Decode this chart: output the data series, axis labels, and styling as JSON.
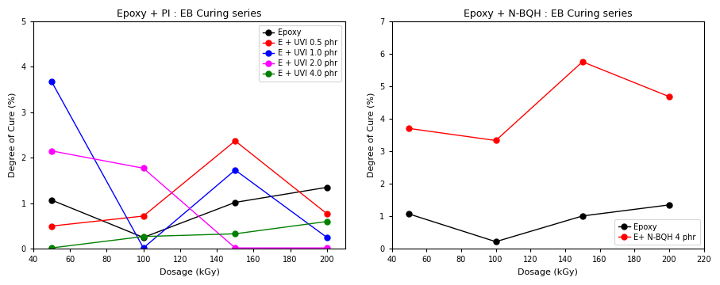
{
  "left": {
    "title": "Epoxy + PI : EB Curing series",
    "xlabel": "Dosage (kGy)",
    "ylabel": "Degree of Cure (%)",
    "xlim": [
      40,
      210
    ],
    "ylim": [
      0,
      5
    ],
    "xticks": [
      40,
      60,
      80,
      100,
      120,
      140,
      160,
      180,
      200
    ],
    "yticks": [
      0,
      1,
      2,
      3,
      4,
      5
    ],
    "series": [
      {
        "label": "Epoxy",
        "color": "#000000",
        "x": [
          50,
          100,
          150,
          200
        ],
        "y": [
          1.07,
          0.25,
          1.02,
          1.35
        ]
      },
      {
        "label": "E + UVI 0.5 phr",
        "color": "#ff0000",
        "x": [
          50,
          100,
          150,
          200
        ],
        "y": [
          0.5,
          0.72,
          2.37,
          0.77
        ]
      },
      {
        "label": "E + UVI 1.0 phr",
        "color": "#0000ff",
        "x": [
          50,
          100,
          150,
          200
        ],
        "y": [
          3.67,
          0.02,
          1.73,
          0.25
        ]
      },
      {
        "label": "E + UVI 2.0 phr",
        "color": "#ff00ff",
        "x": [
          50,
          100,
          150,
          200
        ],
        "y": [
          2.15,
          1.77,
          0.02,
          0.02
        ]
      },
      {
        "label": "E + UVI 4.0 phr",
        "color": "#008000",
        "x": [
          50,
          100,
          150,
          200
        ],
        "y": [
          0.02,
          0.27,
          0.33,
          0.6
        ]
      }
    ]
  },
  "right": {
    "title": "Epoxy + N-BQH : EB Curing series",
    "xlabel": "Dosage (kGy)",
    "ylabel": "Degree of Cure (%)",
    "xlim": [
      40,
      220
    ],
    "ylim": [
      0,
      7
    ],
    "xticks": [
      40,
      60,
      80,
      100,
      120,
      140,
      160,
      180,
      200,
      220
    ],
    "yticks": [
      0,
      1,
      2,
      3,
      4,
      5,
      6,
      7
    ],
    "series": [
      {
        "label": "Epoxy",
        "color": "#000000",
        "x": [
          50,
          100,
          150,
          200
        ],
        "y": [
          1.07,
          0.22,
          1.01,
          1.35
        ]
      },
      {
        "label": "E+ N-BQH 4 phr",
        "color": "#ff0000",
        "x": [
          50,
          100,
          150,
          200
        ],
        "y": [
          3.7,
          3.33,
          5.75,
          4.68
        ]
      }
    ]
  },
  "legend_loc_left": "upper right",
  "legend_loc_right": "lower right",
  "marker": "o",
  "markersize": 5,
  "linewidth": 1.0,
  "title_fontsize": 9,
  "label_fontsize": 8,
  "tick_fontsize": 7,
  "legend_fontsize": 7
}
